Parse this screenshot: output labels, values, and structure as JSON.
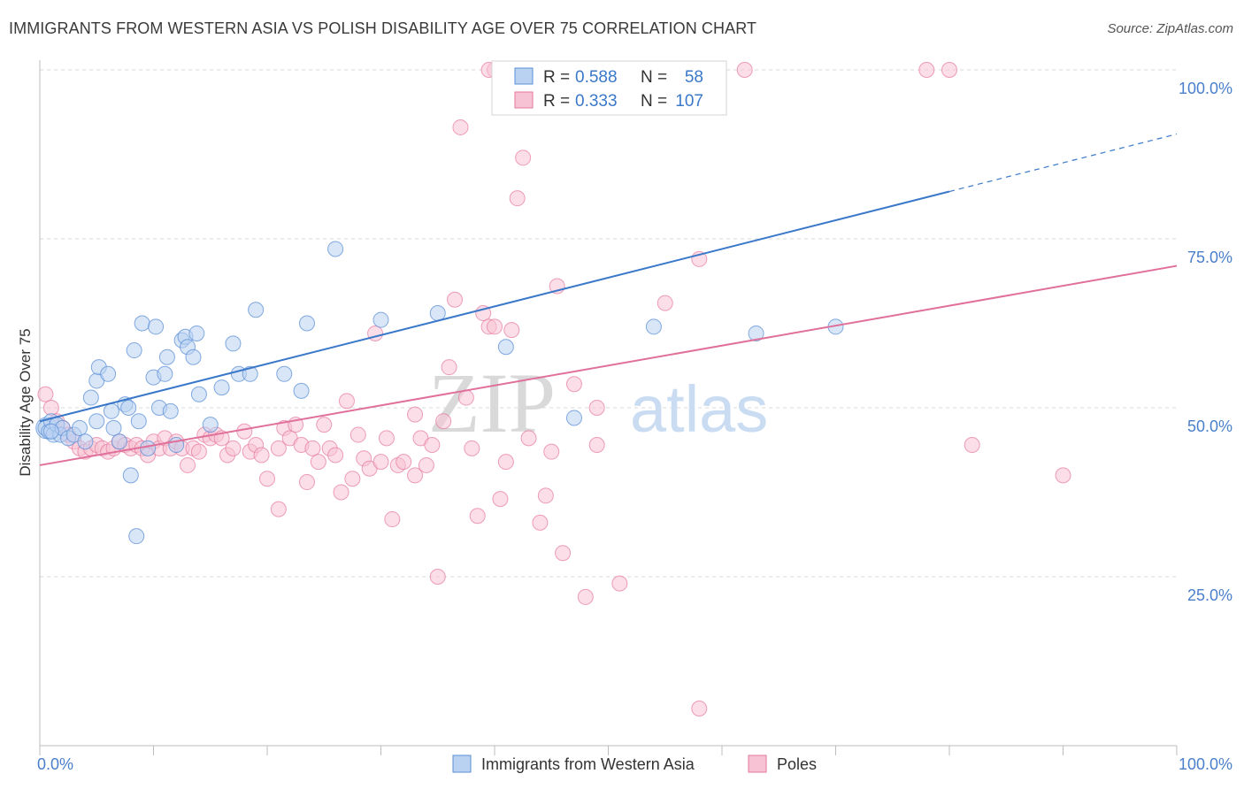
{
  "header": {
    "title": "IMMIGRANTS FROM WESTERN ASIA VS POLISH DISABILITY AGE OVER 75 CORRELATION CHART",
    "source": "Source: ZipAtlas.com"
  },
  "watermark": {
    "zip": "ZIP",
    "atlas": "atlas"
  },
  "legend_top": [
    {
      "r_label": "R =",
      "r_value": "0.588",
      "n_label": "N =",
      "n_value": "58",
      "color": "#5b8fd6"
    },
    {
      "r_label": "R =",
      "r_value": "0.333",
      "n_label": "N =",
      "n_value": "107",
      "color": "#e6789e"
    }
  ],
  "legend_bottom": [
    {
      "label": "Immigrants from Western Asia",
      "color": "#5b8fd6"
    },
    {
      "label": "Poles",
      "color": "#e6789e"
    }
  ],
  "colors": {
    "blue": "#3a78c9",
    "pink": "#e0709a",
    "blue_fill": "#b9d2f2",
    "pink_fill": "#f7c2d4",
    "grid": "#d8d8d8",
    "tick_blue": "#4a7fcb"
  },
  "chart_data": {
    "type": "scatter",
    "title": "IMMIGRANTS FROM WESTERN ASIA VS POLISH DISABILITY AGE OVER 75 CORRELATION CHART",
    "xlabel": "",
    "ylabel": "Disability Age Over 75",
    "xlim": [
      0,
      100
    ],
    "ylim": [
      0,
      100
    ],
    "x_tick_labels": [
      "0.0%",
      "100.0%"
    ],
    "y_tick_labels": [
      "25.0%",
      "50.0%",
      "75.0%",
      "100.0%"
    ],
    "y_ticks": [
      25,
      50,
      75,
      100
    ],
    "grid": true,
    "legend": "top-center",
    "series": [
      {
        "name": "Immigrants from Western Asia",
        "r": 0.588,
        "n": 58,
        "trend": {
          "x0": 0,
          "y0": 48.0,
          "x1": 80,
          "y1": 82.0,
          "dash_to_x": 100,
          "dash_to_y": 90.5
        },
        "points": [
          [
            0.5,
            47
          ],
          [
            0.8,
            46.5
          ],
          [
            1,
            48
          ],
          [
            1.2,
            46
          ],
          [
            1.5,
            47.5
          ],
          [
            1.8,
            46
          ],
          [
            2,
            47
          ],
          [
            2.5,
            45.5
          ],
          [
            3,
            46
          ],
          [
            3.5,
            47
          ],
          [
            4,
            45
          ],
          [
            4.5,
            51.5
          ],
          [
            5,
            48
          ],
          [
            5,
            54
          ],
          [
            5.2,
            56
          ],
          [
            6,
            55
          ],
          [
            6.3,
            49.5
          ],
          [
            6.5,
            47
          ],
          [
            7,
            45
          ],
          [
            7.5,
            50.5
          ],
          [
            7.8,
            50
          ],
          [
            8,
            40
          ],
          [
            8.3,
            58.5
          ],
          [
            8.5,
            31
          ],
          [
            8.7,
            48
          ],
          [
            9,
            62.5
          ],
          [
            9.5,
            44
          ],
          [
            10,
            54.5
          ],
          [
            10.2,
            62
          ],
          [
            10.5,
            50
          ],
          [
            11,
            55
          ],
          [
            11.2,
            57.5
          ],
          [
            11.5,
            49.5
          ],
          [
            12,
            44.5
          ],
          [
            12.5,
            60
          ],
          [
            12.8,
            60.5
          ],
          [
            13,
            59
          ],
          [
            13.5,
            57.5
          ],
          [
            13.8,
            61
          ],
          [
            14,
            52
          ],
          [
            15,
            47.5
          ],
          [
            16,
            53
          ],
          [
            17,
            59.5
          ],
          [
            17.5,
            55
          ],
          [
            18.5,
            55
          ],
          [
            19,
            64.5
          ],
          [
            21.5,
            55
          ],
          [
            23,
            52.5
          ],
          [
            23.5,
            62.5
          ],
          [
            26,
            73.5
          ],
          [
            30,
            63
          ],
          [
            35,
            64
          ],
          [
            41,
            59
          ],
          [
            47,
            48.5
          ],
          [
            54,
            62
          ],
          [
            63,
            61
          ],
          [
            70,
            62
          ],
          [
            1,
            46.5
          ]
        ],
        "big_point": [
          0.6,
          47
        ]
      },
      {
        "name": "Poles",
        "r": 0.333,
        "n": 107,
        "trend": {
          "x0": 0,
          "y0": 41.5,
          "x1": 100,
          "y1": 71.0
        },
        "points": [
          [
            0.5,
            52
          ],
          [
            1,
            50
          ],
          [
            1.5,
            48
          ],
          [
            2,
            47
          ],
          [
            2.5,
            46
          ],
          [
            3,
            45
          ],
          [
            3.5,
            44
          ],
          [
            4,
            43.5
          ],
          [
            4.5,
            44
          ],
          [
            5,
            44.5
          ],
          [
            5.5,
            44
          ],
          [
            6,
            43.5
          ],
          [
            6.5,
            44
          ],
          [
            7,
            45
          ],
          [
            7.5,
            44.5
          ],
          [
            8,
            44
          ],
          [
            8.5,
            44.5
          ],
          [
            9,
            44
          ],
          [
            9.5,
            43
          ],
          [
            10,
            45
          ],
          [
            10.5,
            44
          ],
          [
            11,
            45.5
          ],
          [
            11.5,
            44
          ],
          [
            12,
            45
          ],
          [
            12.5,
            44
          ],
          [
            13,
            41.5
          ],
          [
            13.5,
            44
          ],
          [
            14,
            43.5
          ],
          [
            14.5,
            46
          ],
          [
            15,
            45.5
          ],
          [
            15.5,
            46
          ],
          [
            16,
            45.5
          ],
          [
            16.5,
            43
          ],
          [
            17,
            44
          ],
          [
            18,
            46.5
          ],
          [
            18.5,
            43.5
          ],
          [
            19,
            44.5
          ],
          [
            19.5,
            43
          ],
          [
            20,
            39.5
          ],
          [
            21,
            44
          ],
          [
            21.5,
            47
          ],
          [
            22,
            45.5
          ],
          [
            22.5,
            47.5
          ],
          [
            23,
            44.5
          ],
          [
            23.5,
            39
          ],
          [
            24,
            44
          ],
          [
            24.5,
            42
          ],
          [
            25,
            47.5
          ],
          [
            25.5,
            44
          ],
          [
            26,
            43
          ],
          [
            27,
            51
          ],
          [
            27.5,
            39.5
          ],
          [
            28,
            46
          ],
          [
            28.5,
            42.5
          ],
          [
            29,
            41
          ],
          [
            29.5,
            61
          ],
          [
            30,
            42
          ],
          [
            30.5,
            45.5
          ],
          [
            31,
            33.5
          ],
          [
            31.5,
            41.5
          ],
          [
            32,
            42
          ],
          [
            33,
            49
          ],
          [
            33.5,
            45.5
          ],
          [
            34,
            41.5
          ],
          [
            34.5,
            44.5
          ],
          [
            35,
            25
          ],
          [
            35.5,
            48
          ],
          [
            36,
            56
          ],
          [
            36.5,
            66
          ],
          [
            37,
            91.5
          ],
          [
            37.5,
            51.5
          ],
          [
            38,
            44
          ],
          [
            38.5,
            34
          ],
          [
            39,
            64
          ],
          [
            39.5,
            62
          ],
          [
            40,
            62
          ],
          [
            40.5,
            36.5
          ],
          [
            41,
            42
          ],
          [
            41.5,
            61.5
          ],
          [
            42,
            81
          ],
          [
            42.5,
            87
          ],
          [
            43,
            45.5
          ],
          [
            44,
            33
          ],
          [
            45,
            43.5
          ],
          [
            45.5,
            68
          ],
          [
            46,
            28.5
          ],
          [
            47,
            53.5
          ],
          [
            48,
            22
          ],
          [
            49,
            44.5
          ],
          [
            49,
            50
          ],
          [
            51,
            24
          ],
          [
            55,
            65.5
          ],
          [
            58,
            72
          ],
          [
            58,
            5.5
          ],
          [
            62,
            100
          ],
          [
            78,
            100
          ],
          [
            80,
            100
          ],
          [
            82,
            44.5
          ],
          [
            90,
            40
          ],
          [
            40,
            100
          ],
          [
            48,
            100
          ],
          [
            49,
            100
          ],
          [
            39.5,
            100
          ],
          [
            33,
            40
          ],
          [
            21,
            35
          ],
          [
            26.5,
            37.5
          ],
          [
            44.5,
            37
          ]
        ]
      }
    ]
  }
}
